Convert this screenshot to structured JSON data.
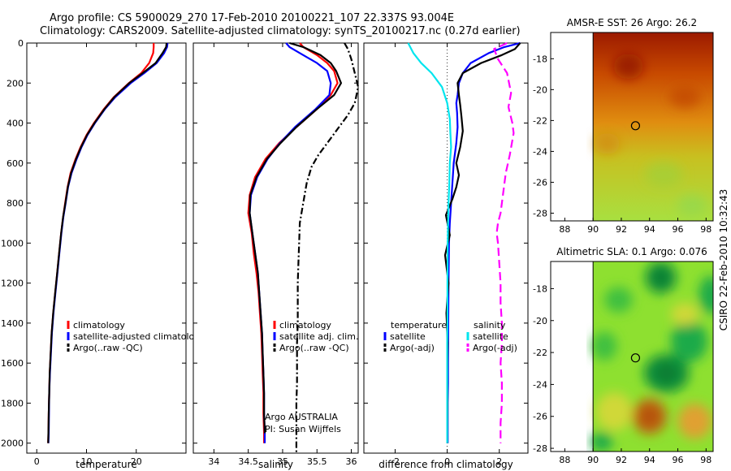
{
  "title": {
    "line1": "Argo profile: CS 5900029_270 17-Feb-2010 20100221_107 22.337S 93.004E",
    "line2": "Climatology: CARS2009. Satellite-adjusted climatology: synTS_20100217.nc (0.27d earlier)"
  },
  "side_label": "CSIRO 22-Feb-2010 10:32:43",
  "colors": {
    "climatology": "#ff0000",
    "satellite": "#0000ff",
    "argo": "#000000",
    "satellite_salinity": "#00e5ee",
    "argo_salinity": "#ff00ff"
  },
  "chart_data": [
    {
      "type": "line",
      "xlabel": "temperature",
      "ylabel": "",
      "xlim": [
        -2,
        30
      ],
      "ylim": [
        2050,
        0
      ],
      "xticks": [
        0,
        10,
        20
      ],
      "yticks": [
        0,
        200,
        400,
        600,
        800,
        1000,
        1200,
        1400,
        1600,
        1800,
        2000
      ],
      "legend": [
        "climatology",
        "satellite-adjusted climatology",
        "Argo(..raw -QC)"
      ],
      "legend_placement": "lower-right",
      "series": [
        {
          "name": "climatology",
          "color": "climatology",
          "dash": "",
          "x": [
            23.5,
            23.5,
            23.4,
            22.6,
            21,
            18.5,
            15.5,
            13.5,
            11.5,
            10,
            8.8,
            7.8,
            6.8,
            6.2,
            5.7,
            5.3,
            4.9,
            4.5,
            4.1,
            3.7,
            3.3,
            3.0,
            2.8,
            2.6,
            2.5,
            2.4,
            2.35,
            2.3
          ],
          "y": [
            0,
            20,
            50,
            100,
            150,
            200,
            270,
            330,
            400,
            460,
            520,
            580,
            650,
            720,
            800,
            870,
            950,
            1050,
            1150,
            1250,
            1350,
            1450,
            1550,
            1650,
            1750,
            1850,
            1950,
            2000
          ]
        },
        {
          "name": "satellite-adjusted climatology",
          "color": "satellite",
          "dash": "",
          "x": [
            26.3,
            26.2,
            25.6,
            24.1,
            21.6,
            18.9,
            15.8,
            13.7,
            11.7,
            10.2,
            9.0,
            8.0,
            7.0,
            6.3,
            5.8,
            5.35,
            4.95,
            4.55,
            4.15,
            3.75,
            3.35,
            3.05,
            2.85,
            2.65,
            2.5,
            2.45,
            2.4,
            2.35
          ],
          "y": [
            0,
            20,
            50,
            100,
            150,
            200,
            270,
            330,
            400,
            460,
            520,
            580,
            650,
            720,
            800,
            870,
            950,
            1050,
            1150,
            1250,
            1350,
            1450,
            1550,
            1650,
            1750,
            1850,
            1950,
            2000
          ]
        },
        {
          "name": "Argo(..raw -QC)",
          "color": "argo",
          "dash": "",
          "x": [
            26.1,
            26.0,
            25.3,
            23.9,
            21.3,
            18.6,
            15.6,
            13.6,
            11.6,
            10.1,
            8.9,
            7.9,
            6.9,
            6.25,
            5.75,
            5.3,
            4.9,
            4.5,
            4.1,
            3.7,
            3.3,
            3.0,
            2.8,
            2.6,
            2.5,
            2.4,
            2.35,
            2.3
          ],
          "y": [
            0,
            20,
            50,
            100,
            150,
            200,
            270,
            330,
            400,
            460,
            520,
            580,
            650,
            720,
            800,
            870,
            950,
            1050,
            1150,
            1250,
            1350,
            1450,
            1550,
            1650,
            1750,
            1850,
            1950,
            2000
          ]
        }
      ]
    },
    {
      "type": "line",
      "xlabel": "salinity",
      "xlim": [
        33.7,
        36.1
      ],
      "ylim": [
        2050,
        0
      ],
      "xticks": [
        34,
        34.5,
        35,
        35.5,
        36
      ],
      "legend": [
        "climatology",
        "satellite adj. clim.",
        "Argo(..raw -QC)"
      ],
      "legend_placement": "lower-right",
      "annotations": [
        "Argo AUSTRALIA",
        "PI: Susan Wijffels"
      ],
      "series": [
        {
          "name": "climatology",
          "color": "climatology",
          "dash": "",
          "x": [
            35.25,
            35.3,
            35.5,
            35.65,
            35.75,
            35.8,
            35.7,
            35.5,
            35.2,
            34.95,
            34.75,
            34.6,
            34.52,
            34.5,
            34.55,
            34.58,
            34.62,
            34.65,
            34.67,
            34.69,
            34.7,
            34.71,
            34.72,
            34.72,
            34.73,
            34.73
          ],
          "y": [
            0,
            20,
            60,
            100,
            140,
            200,
            260,
            330,
            420,
            500,
            580,
            670,
            760,
            850,
            950,
            1050,
            1150,
            1250,
            1350,
            1450,
            1550,
            1650,
            1750,
            1850,
            1950,
            2000
          ]
        },
        {
          "name": "satellite adj. clim.",
          "color": "satellite",
          "dash": "",
          "x": [
            35.05,
            35.1,
            35.3,
            35.5,
            35.65,
            35.7,
            35.68,
            35.48,
            35.18,
            34.96,
            34.78,
            34.63,
            34.54,
            34.52,
            34.56,
            34.6,
            34.64,
            34.66,
            34.68,
            34.7,
            34.71,
            34.72,
            34.73,
            34.73,
            34.74,
            34.74
          ],
          "y": [
            0,
            20,
            60,
            100,
            140,
            200,
            260,
            330,
            420,
            500,
            580,
            670,
            760,
            850,
            950,
            1050,
            1150,
            1250,
            1350,
            1450,
            1550,
            1650,
            1750,
            1850,
            1950,
            2000
          ]
        },
        {
          "name": "Argo(..raw -QC)",
          "color": "argo",
          "dash": "",
          "x": [
            35.1,
            35.3,
            35.55,
            35.7,
            35.78,
            35.85,
            35.75,
            35.5,
            35.2,
            34.97,
            34.77,
            34.62,
            34.53,
            34.52,
            34.56,
            34.6,
            34.64,
            34.66,
            34.68,
            34.7,
            34.71,
            34.72,
            34.73,
            34.73,
            34.74
          ],
          "y": [
            0,
            20,
            60,
            100,
            140,
            200,
            260,
            330,
            420,
            500,
            580,
            670,
            760,
            850,
            950,
            1050,
            1150,
            1250,
            1350,
            1450,
            1550,
            1650,
            1750,
            1850,
            1950
          ]
        },
        {
          "name": "Argo(..raw -QC)",
          "color": "argo",
          "dash": "8,3,2,3",
          "x": [
            35.9,
            35.95,
            36.0,
            36.05,
            36.1,
            36.05,
            35.95,
            35.8,
            35.65,
            35.52,
            35.42,
            35.35,
            35.3,
            35.25,
            35.24,
            35.23,
            35.22,
            35.22,
            35.22,
            35.21,
            35.21,
            35.21,
            35.2,
            35.2,
            35.2,
            35.2,
            35.2
          ],
          "y": [
            0,
            30,
            80,
            150,
            220,
            300,
            360,
            430,
            500,
            560,
            620,
            700,
            800,
            900,
            1000,
            1100,
            1200,
            1300,
            1400,
            1500,
            1600,
            1700,
            1800,
            1900,
            1950,
            2000,
            2050
          ]
        }
      ]
    },
    {
      "type": "line",
      "xlabel": "difference from climatology",
      "xlim": [
        -3.2,
        3.1
      ],
      "ylim": [
        2050,
        0
      ],
      "xticks": [
        -2,
        0,
        2
      ],
      "legend": [
        "temperature",
        "satellite",
        "Argo(-adj)",
        "salinity",
        "satellite",
        "Argo(-adj)"
      ],
      "legend_placement": "lower-center",
      "series": [
        {
          "name": "temperature satellite",
          "color": "satellite",
          "dash": "",
          "x": [
            2.8,
            2.2,
            1.6,
            0.9,
            0.6,
            0.45,
            0.4,
            0.35,
            0.38,
            0.4,
            0.35,
            0.25,
            0.2,
            0.15,
            0.1,
            0.07,
            0.05,
            0.04,
            0.03,
            0.03,
            0.02,
            0.02,
            0.02,
            0.02,
            0.02
          ],
          "y": [
            0,
            20,
            50,
            100,
            150,
            200,
            260,
            300,
            350,
            420,
            500,
            600,
            700,
            800,
            900,
            1000,
            1200,
            1400,
            1600,
            1700,
            1800,
            1900,
            2000,
            2000,
            2000
          ]
        },
        {
          "name": "temperature Argo(-adj)",
          "color": "argo",
          "dash": "",
          "x": [
            2.8,
            2.6,
            2.1,
            1.3,
            0.6,
            0.4,
            0.45,
            0.5,
            0.55,
            0.6,
            0.5,
            0.35,
            0.45,
            0.35,
            0.2,
            -0.05,
            0.1,
            -0.08,
            0.05,
            -0.03,
            0.02,
            0.0,
            0.01,
            0.0,
            0.0
          ],
          "y": [
            0,
            30,
            60,
            100,
            150,
            200,
            260,
            310,
            370,
            440,
            520,
            600,
            660,
            720,
            780,
            860,
            960,
            1060,
            1200,
            1350,
            1500,
            1650,
            1800,
            1950,
            2000
          ]
        },
        {
          "name": "salinity satellite",
          "color": "satellite_salinity",
          "dash": "",
          "x": [
            -1.5,
            -1.3,
            -1.0,
            -0.6,
            -0.2,
            0.0,
            0.1,
            0.12,
            0.15,
            0.1,
            0.08,
            0.05,
            0.03,
            0.02,
            0.01,
            0.01,
            0.0,
            0.0,
            0.0,
            0.0,
            0.0,
            0.0
          ],
          "y": [
            0,
            50,
            100,
            150,
            220,
            300,
            380,
            450,
            520,
            600,
            700,
            800,
            900,
            1000,
            1200,
            1400,
            1500,
            1600,
            1700,
            1800,
            1900,
            2000
          ]
        },
        {
          "name": "salinity Argo(-adj)",
          "color": "argo_salinity",
          "dash": "10,5",
          "x": [
            2.3,
            1.8,
            1.95,
            2.3,
            2.45,
            2.35,
            2.5,
            2.55,
            2.4,
            2.25,
            2.15,
            2.05,
            1.95,
            1.9,
            1.95,
            2.0,
            2.05,
            2.05,
            2.1,
            2.1,
            2.05,
            2.1,
            2.1,
            2.05,
            2.05,
            2.05
          ],
          "y": [
            0,
            30,
            80,
            150,
            250,
            320,
            400,
            450,
            560,
            650,
            750,
            850,
            900,
            950,
            1000,
            1100,
            1200,
            1300,
            1400,
            1500,
            1600,
            1700,
            1800,
            1900,
            1950,
            2000
          ]
        }
      ]
    },
    {
      "type": "heatmap",
      "title": "AMSR-E SST: 26 Argo: 26.2",
      "xlim": [
        87,
        98.5
      ],
      "ylim": [
        -28.5,
        -16.3
      ],
      "xticks": [
        88,
        90,
        92,
        94,
        96,
        98
      ],
      "yticks": [
        -18,
        -20,
        -22,
        -24,
        -26,
        -28
      ],
      "nodata_below_x": 90,
      "marker": {
        "lon": 93.004,
        "lat": -22.337
      },
      "colormap": "sst",
      "gradient_stops": [
        {
          "lat": -16.3,
          "value": 28.0
        },
        {
          "lat": -19.0,
          "value": 27.2
        },
        {
          "lat": -22.0,
          "value": 26.0
        },
        {
          "lat": -24.0,
          "value": 25.2
        },
        {
          "lat": -28.5,
          "value": 24.6
        }
      ]
    },
    {
      "type": "heatmap",
      "title": "Altimetric SLA: 0.1 Argo: 0.076",
      "xlim": [
        87,
        98.5
      ],
      "ylim": [
        -28.2,
        -16.3
      ],
      "xticks": [
        88,
        90,
        92,
        94,
        96,
        98
      ],
      "yticks": [
        -18,
        -20,
        -22,
        -24,
        -26,
        -28
      ],
      "nodata_below_x": 90,
      "marker": {
        "lon": 93.004,
        "lat": -22.337
      },
      "colormap": "sla",
      "features": [
        {
          "lon": 94.8,
          "lat": -17.3,
          "rx": 1.1,
          "ry": 1.0,
          "value": -1.0
        },
        {
          "lon": 96.8,
          "lat": -21.3,
          "rx": 1.3,
          "ry": 1.3,
          "value": -0.8
        },
        {
          "lon": 95.2,
          "lat": -23.3,
          "rx": 1.6,
          "ry": 1.2,
          "value": -1.2
        },
        {
          "lon": 91.8,
          "lat": -18.7,
          "rx": 1.0,
          "ry": 0.8,
          "value": -0.4
        },
        {
          "lon": 90.8,
          "lat": -21.6,
          "rx": 0.9,
          "ry": 0.9,
          "value": -0.4
        },
        {
          "lon": 98.3,
          "lat": -18.4,
          "rx": 0.8,
          "ry": 1.2,
          "value": -0.6
        },
        {
          "lon": 94.0,
          "lat": -26.0,
          "rx": 1.2,
          "ry": 1.1,
          "value": 1.2
        },
        {
          "lon": 97.2,
          "lat": -26.3,
          "rx": 1.2,
          "ry": 1.1,
          "value": 0.8
        },
        {
          "lon": 91.5,
          "lat": -25.7,
          "rx": 1.3,
          "ry": 1.2,
          "value": 0.35
        },
        {
          "lon": 96.5,
          "lat": -19.6,
          "rx": 1.0,
          "ry": 0.7,
          "value": 0.3
        },
        {
          "lon": 90.6,
          "lat": -27.6,
          "rx": 0.8,
          "ry": 0.6,
          "value": -0.7
        }
      ]
    }
  ]
}
